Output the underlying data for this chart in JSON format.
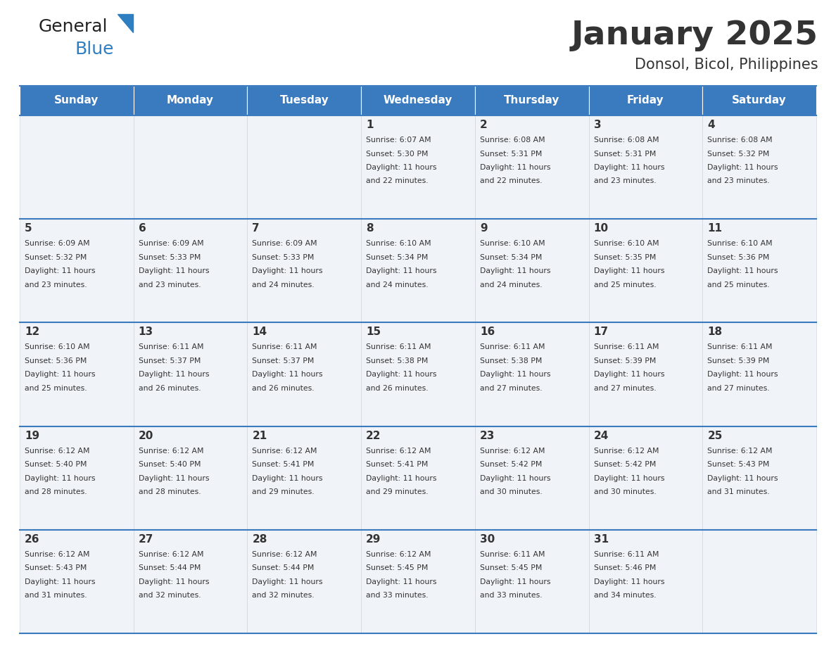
{
  "title": "January 2025",
  "subtitle": "Donsol, Bicol, Philippines",
  "header_bg": "#3a7abf",
  "header_text_color": "#ffffff",
  "cell_bg": "#f0f4f8",
  "border_color": "#3a7abf",
  "text_color": "#333333",
  "day_names": [
    "Sunday",
    "Monday",
    "Tuesday",
    "Wednesday",
    "Thursday",
    "Friday",
    "Saturday"
  ],
  "weeks": [
    [
      {
        "day": "",
        "sunrise": "",
        "sunset": "",
        "daylight": ""
      },
      {
        "day": "",
        "sunrise": "",
        "sunset": "",
        "daylight": ""
      },
      {
        "day": "",
        "sunrise": "",
        "sunset": "",
        "daylight": ""
      },
      {
        "day": "1",
        "sunrise": "6:07 AM",
        "sunset": "5:30 PM",
        "daylight": "11 hours and 22 minutes."
      },
      {
        "day": "2",
        "sunrise": "6:08 AM",
        "sunset": "5:31 PM",
        "daylight": "11 hours and 22 minutes."
      },
      {
        "day": "3",
        "sunrise": "6:08 AM",
        "sunset": "5:31 PM",
        "daylight": "11 hours and 23 minutes."
      },
      {
        "day": "4",
        "sunrise": "6:08 AM",
        "sunset": "5:32 PM",
        "daylight": "11 hours and 23 minutes."
      }
    ],
    [
      {
        "day": "5",
        "sunrise": "6:09 AM",
        "sunset": "5:32 PM",
        "daylight": "11 hours and 23 minutes."
      },
      {
        "day": "6",
        "sunrise": "6:09 AM",
        "sunset": "5:33 PM",
        "daylight": "11 hours and 23 minutes."
      },
      {
        "day": "7",
        "sunrise": "6:09 AM",
        "sunset": "5:33 PM",
        "daylight": "11 hours and 24 minutes."
      },
      {
        "day": "8",
        "sunrise": "6:10 AM",
        "sunset": "5:34 PM",
        "daylight": "11 hours and 24 minutes."
      },
      {
        "day": "9",
        "sunrise": "6:10 AM",
        "sunset": "5:34 PM",
        "daylight": "11 hours and 24 minutes."
      },
      {
        "day": "10",
        "sunrise": "6:10 AM",
        "sunset": "5:35 PM",
        "daylight": "11 hours and 25 minutes."
      },
      {
        "day": "11",
        "sunrise": "6:10 AM",
        "sunset": "5:36 PM",
        "daylight": "11 hours and 25 minutes."
      }
    ],
    [
      {
        "day": "12",
        "sunrise": "6:10 AM",
        "sunset": "5:36 PM",
        "daylight": "11 hours and 25 minutes."
      },
      {
        "day": "13",
        "sunrise": "6:11 AM",
        "sunset": "5:37 PM",
        "daylight": "11 hours and 26 minutes."
      },
      {
        "day": "14",
        "sunrise": "6:11 AM",
        "sunset": "5:37 PM",
        "daylight": "11 hours and 26 minutes."
      },
      {
        "day": "15",
        "sunrise": "6:11 AM",
        "sunset": "5:38 PM",
        "daylight": "11 hours and 26 minutes."
      },
      {
        "day": "16",
        "sunrise": "6:11 AM",
        "sunset": "5:38 PM",
        "daylight": "11 hours and 27 minutes."
      },
      {
        "day": "17",
        "sunrise": "6:11 AM",
        "sunset": "5:39 PM",
        "daylight": "11 hours and 27 minutes."
      },
      {
        "day": "18",
        "sunrise": "6:11 AM",
        "sunset": "5:39 PM",
        "daylight": "11 hours and 27 minutes."
      }
    ],
    [
      {
        "day": "19",
        "sunrise": "6:12 AM",
        "sunset": "5:40 PM",
        "daylight": "11 hours and 28 minutes."
      },
      {
        "day": "20",
        "sunrise": "6:12 AM",
        "sunset": "5:40 PM",
        "daylight": "11 hours and 28 minutes."
      },
      {
        "day": "21",
        "sunrise": "6:12 AM",
        "sunset": "5:41 PM",
        "daylight": "11 hours and 29 minutes."
      },
      {
        "day": "22",
        "sunrise": "6:12 AM",
        "sunset": "5:41 PM",
        "daylight": "11 hours and 29 minutes."
      },
      {
        "day": "23",
        "sunrise": "6:12 AM",
        "sunset": "5:42 PM",
        "daylight": "11 hours and 30 minutes."
      },
      {
        "day": "24",
        "sunrise": "6:12 AM",
        "sunset": "5:42 PM",
        "daylight": "11 hours and 30 minutes."
      },
      {
        "day": "25",
        "sunrise": "6:12 AM",
        "sunset": "5:43 PM",
        "daylight": "11 hours and 31 minutes."
      }
    ],
    [
      {
        "day": "26",
        "sunrise": "6:12 AM",
        "sunset": "5:43 PM",
        "daylight": "11 hours and 31 minutes."
      },
      {
        "day": "27",
        "sunrise": "6:12 AM",
        "sunset": "5:44 PM",
        "daylight": "11 hours and 32 minutes."
      },
      {
        "day": "28",
        "sunrise": "6:12 AM",
        "sunset": "5:44 PM",
        "daylight": "11 hours and 32 minutes."
      },
      {
        "day": "29",
        "sunrise": "6:12 AM",
        "sunset": "5:45 PM",
        "daylight": "11 hours and 33 minutes."
      },
      {
        "day": "30",
        "sunrise": "6:11 AM",
        "sunset": "5:45 PM",
        "daylight": "11 hours and 33 minutes."
      },
      {
        "day": "31",
        "sunrise": "6:11 AM",
        "sunset": "5:46 PM",
        "daylight": "11 hours and 34 minutes."
      },
      {
        "day": "",
        "sunrise": "",
        "sunset": "",
        "daylight": ""
      }
    ]
  ],
  "logo_text1": "General",
  "logo_text2": "Blue",
  "logo_color1": "#222222",
  "logo_color2": "#2e7fc1",
  "fig_width": 11.88,
  "fig_height": 9.18,
  "dpi": 100
}
